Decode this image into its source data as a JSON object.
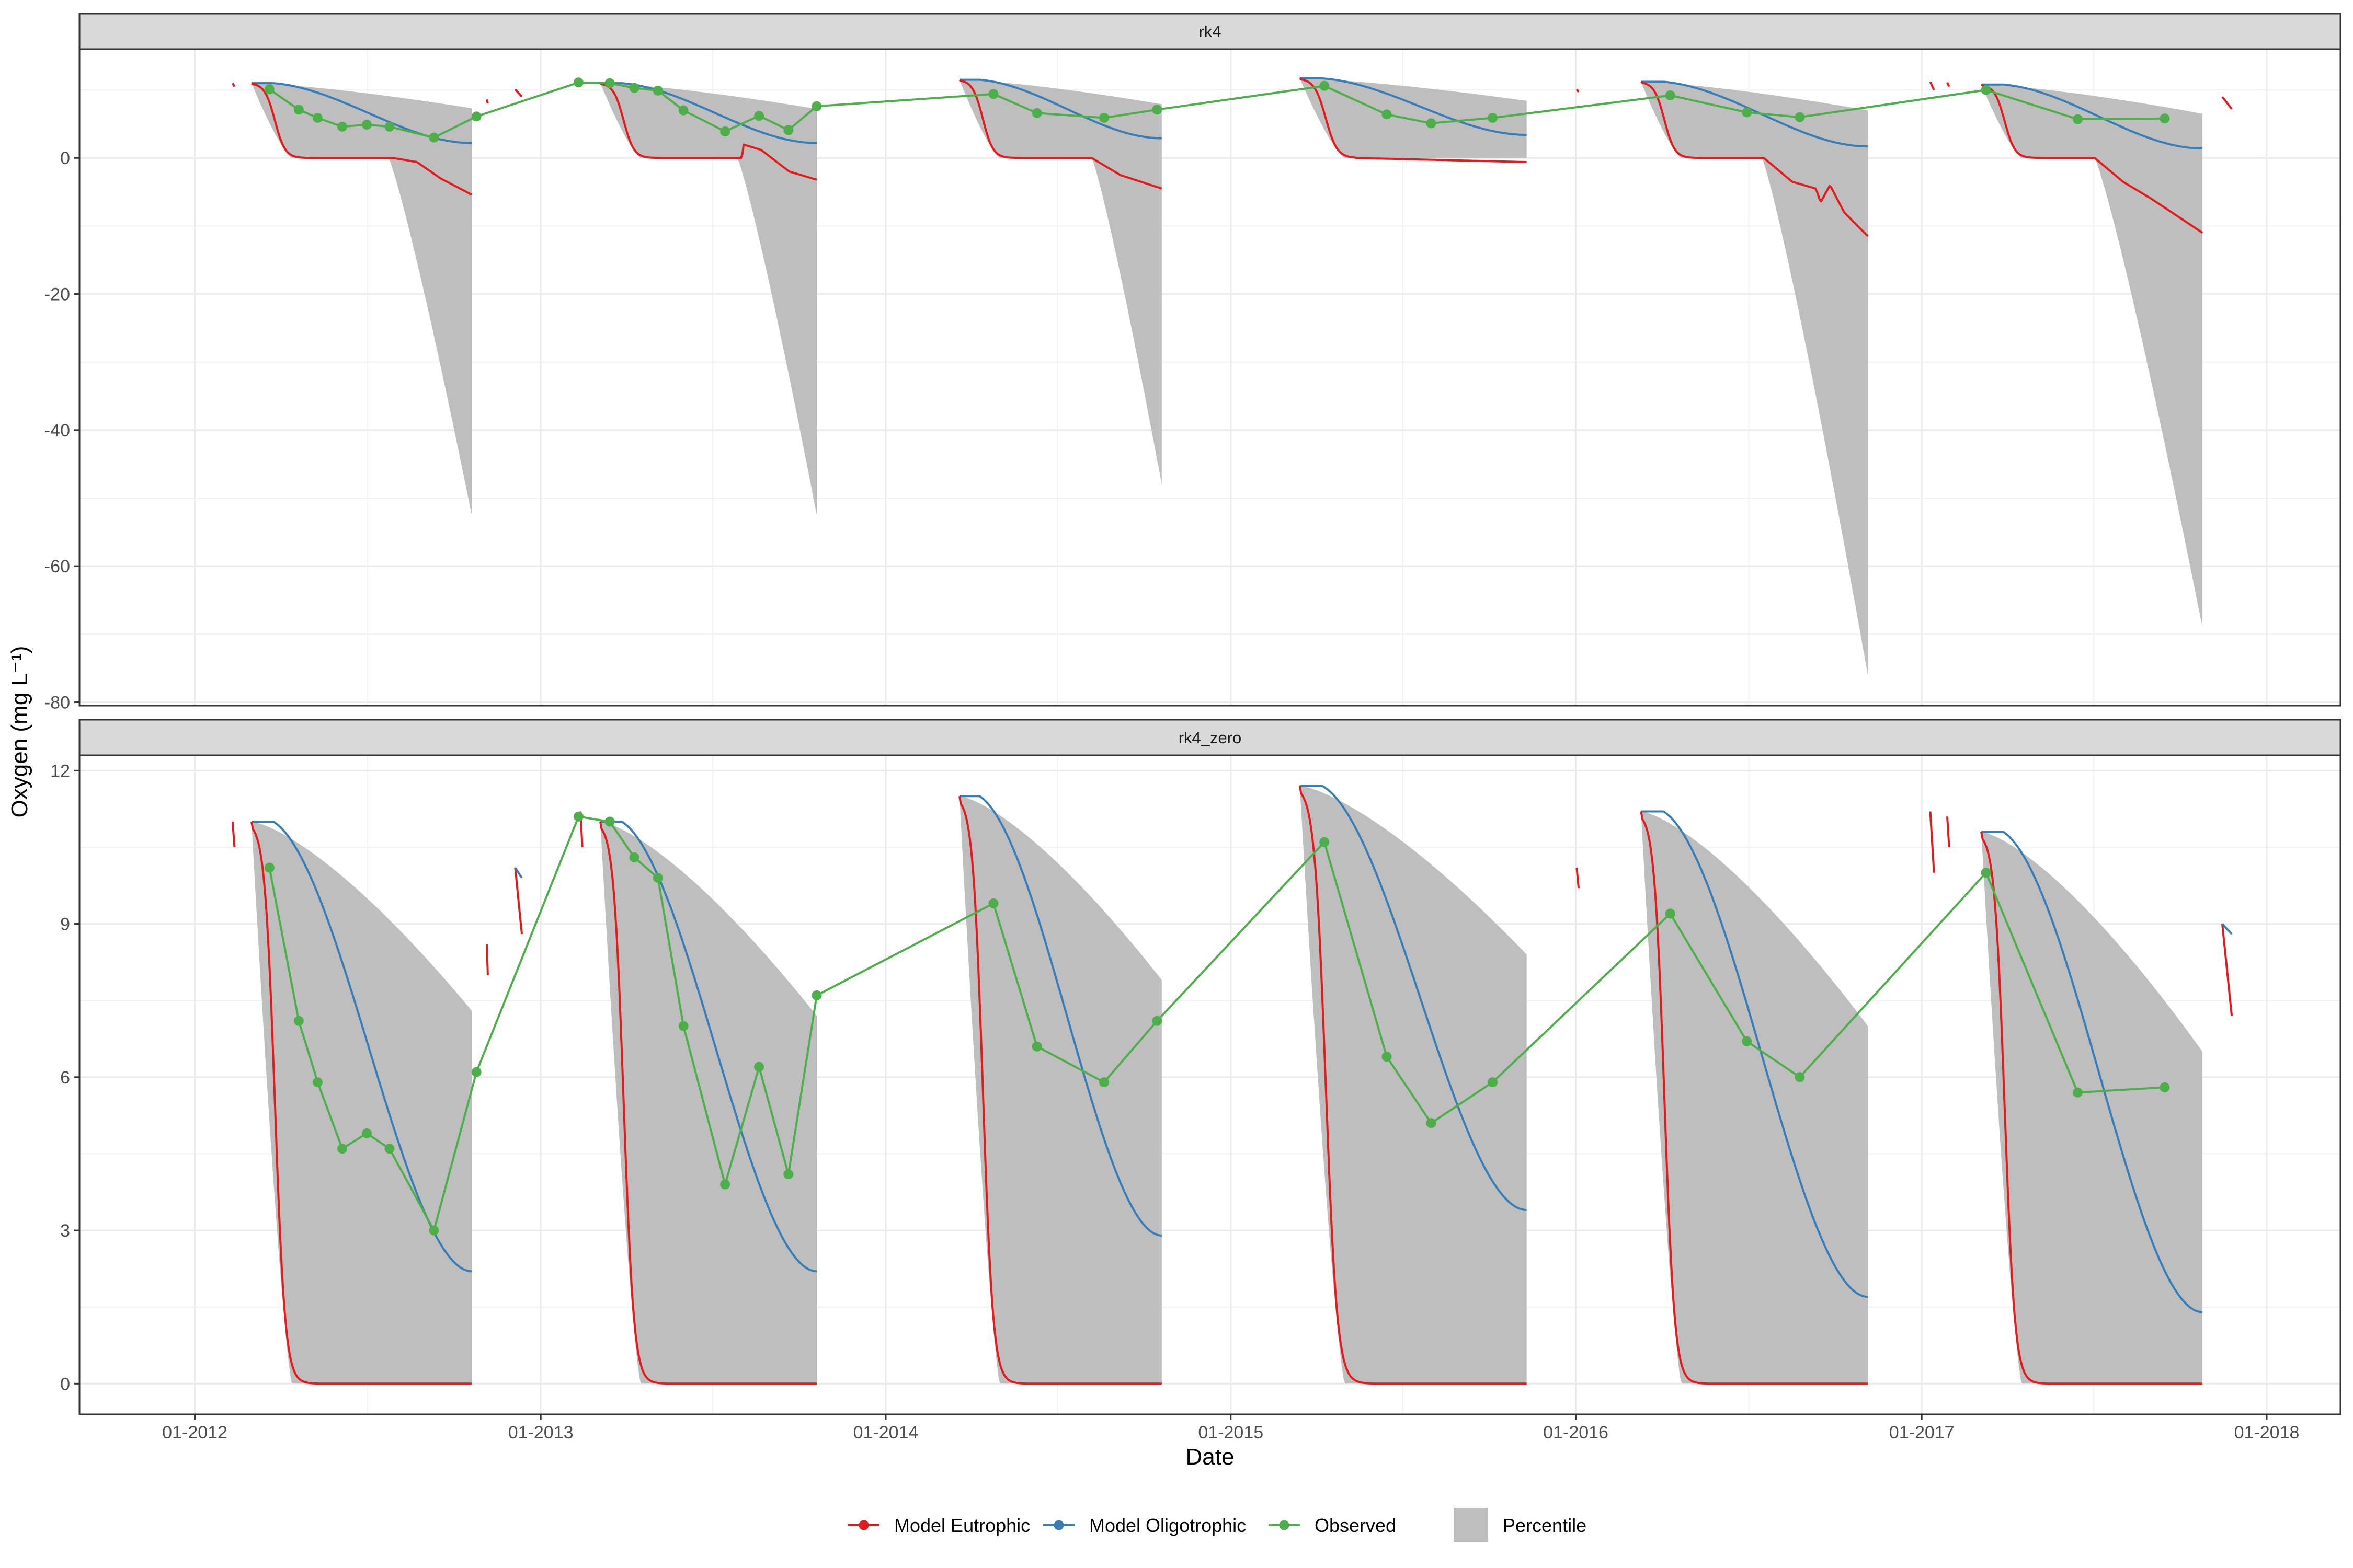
{
  "chart_data": {
    "type": "line",
    "xlabel": "Date",
    "ylabel": "Oxygen (mg L⁻¹)",
    "x_ticks": [
      "01-2012",
      "01-2013",
      "01-2014",
      "01-2015",
      "01-2016",
      "01-2017",
      "01-2018"
    ],
    "x_range": [
      "2011-09-01",
      "2018-03-20"
    ],
    "legend": {
      "position": "bottom",
      "entries": [
        {
          "label": "Model Eutrophic",
          "color": "#e41a1c",
          "kind": "line-point"
        },
        {
          "label": "Model Oligotrophic",
          "color": "#377eb8",
          "kind": "line-point"
        },
        {
          "label": "Observed",
          "color": "#4daf4a",
          "kind": "line-point"
        },
        {
          "label": "Percentile",
          "color": "#bebebe",
          "kind": "fill"
        }
      ]
    },
    "panels": [
      {
        "strip": "rk4",
        "ylim": [
          -80.5,
          16
        ],
        "y_ticks": [
          -80,
          -60,
          -40,
          -20,
          0
        ],
        "observed": [
          [
            "2012-03-20",
            10.1
          ],
          [
            "2012-04-20",
            7.1
          ],
          [
            "2012-05-10",
            5.9
          ],
          [
            "2012-06-05",
            4.6
          ],
          [
            "2012-07-01",
            4.9
          ],
          [
            "2012-07-25",
            4.6
          ],
          [
            "2012-09-10",
            3.0
          ],
          [
            "2012-10-25",
            6.1
          ],
          [
            "2013-02-10",
            11.1
          ],
          [
            "2013-03-15",
            11.0
          ],
          [
            "2013-04-10",
            10.3
          ],
          [
            "2013-05-05",
            9.9
          ],
          [
            "2013-06-01",
            7.0
          ],
          [
            "2013-07-15",
            3.9
          ],
          [
            "2013-08-20",
            6.2
          ],
          [
            "2013-09-20",
            4.1
          ],
          [
            "2013-10-20",
            7.6
          ],
          [
            "2014-04-25",
            9.4
          ],
          [
            "2014-06-10",
            6.6
          ],
          [
            "2014-08-20",
            5.9
          ],
          [
            "2014-10-15",
            7.1
          ],
          [
            "2015-04-10",
            10.6
          ],
          [
            "2015-06-15",
            6.4
          ],
          [
            "2015-08-01",
            5.1
          ],
          [
            "2015-10-05",
            5.9
          ],
          [
            "2016-04-10",
            9.2
          ],
          [
            "2016-06-30",
            6.7
          ],
          [
            "2016-08-25",
            6.0
          ],
          [
            "2017-03-10",
            10.0
          ],
          [
            "2017-06-15",
            5.7
          ],
          [
            "2017-09-15",
            5.8
          ]
        ],
        "seasons": [
          {
            "start": "2012-03-01",
            "end": "2012-10-20",
            "eutrophic_start": 11.0,
            "oligotrophic_start": 11.0,
            "oligotrophic_end": 2.2,
            "eutrophic_drop": 45,
            "eutrophic_tail": [
              [
                150,
                0.0
              ],
              [
                175,
                -0.6
              ],
              [
                200,
                -3.0
              ],
              [
                233,
                -5.4
              ]
            ],
            "band_upper_end": 7.3,
            "band_lower_min": -52.5,
            "band_lower_start": 145
          },
          {
            "start": "2013-03-05",
            "end": "2013-10-20",
            "eutrophic_start": 11.0,
            "oligotrophic_start": 11.0,
            "oligotrophic_end": 2.2,
            "eutrophic_drop": 45,
            "eutrophic_tail": [
              [
                150,
                0.0
              ],
              [
                151,
                2.0
              ],
              [
                170,
                1.2
              ],
              [
                200,
                -2.0
              ],
              [
                229,
                -3.2
              ]
            ],
            "band_upper_end": 7.2,
            "band_lower_min": -52.5,
            "band_lower_start": 145
          },
          {
            "start": "2014-03-20",
            "end": "2014-10-20",
            "eutrophic_start": 11.5,
            "oligotrophic_start": 11.5,
            "oligotrophic_end": 2.9,
            "eutrophic_drop": 45,
            "eutrophic_tail": [
              [
                140,
                0.0
              ],
              [
                170,
                -2.5
              ],
              [
                214,
                -4.5
              ]
            ],
            "band_upper_end": 7.9,
            "band_lower_min": -48.0,
            "band_lower_start": 140
          },
          {
            "start": "2015-03-15",
            "end": "2015-11-10",
            "eutrophic_start": 11.7,
            "oligotrophic_start": 11.7,
            "oligotrophic_end": 3.4,
            "eutrophic_drop": 50,
            "eutrophic_tail": [
              [
                240,
                -0.6
              ]
            ],
            "band_upper_end": 8.4,
            "band_lower_min": 0.0,
            "band_lower_start": 240
          },
          {
            "start": "2016-03-10",
            "end": "2016-11-05",
            "eutrophic_start": 11.2,
            "oligotrophic_start": 11.2,
            "oligotrophic_end": 1.7,
            "eutrophic_drop": 45,
            "eutrophic_tail": [
              [
                130,
                0.0
              ],
              [
                160,
                -3.5
              ],
              [
                185,
                -4.5
              ],
              [
                190,
                -6.5
              ],
              [
                200,
                -4.0
              ],
              [
                215,
                -8.0
              ],
              [
                240,
                -11.5
              ]
            ],
            "band_upper_end": 7.0,
            "band_lower_min": -76.0,
            "band_lower_start": 128
          },
          {
            "start": "2017-03-05",
            "end": "2017-10-25",
            "eutrophic_start": 10.8,
            "oligotrophic_start": 10.8,
            "oligotrophic_end": 1.4,
            "eutrophic_drop": 45,
            "eutrophic_tail": [
              [
                120,
                0.0
              ],
              [
                150,
                -3.5
              ],
              [
                180,
                -6.0
              ],
              [
                234,
                -11.0
              ]
            ],
            "band_upper_end": 6.5,
            "band_lower_min": -69.0,
            "band_lower_start": 120
          }
        ],
        "fragments": [
          {
            "color": "#e41a1c",
            "points": [
              [
                "2012-02-10",
                11.0
              ],
              [
                "2012-02-12",
                10.5
              ]
            ]
          },
          {
            "color": "#e41a1c",
            "points": [
              [
                "2012-11-05",
                8.6
              ],
              [
                "2012-11-06",
                8.0
              ]
            ]
          },
          {
            "color": "#e41a1c",
            "points": [
              [
                "2012-12-05",
                10.1
              ],
              [
                "2012-12-12",
                9.0
              ]
            ]
          },
          {
            "color": "#e41a1c",
            "points": [
              [
                "2016-01-02",
                10.1
              ],
              [
                "2016-01-04",
                9.7
              ]
            ]
          },
          {
            "color": "#e41a1c",
            "points": [
              [
                "2017-01-10",
                11.2
              ],
              [
                "2017-01-14",
                10.0
              ]
            ]
          },
          {
            "color": "#e41a1c",
            "points": [
              [
                "2017-01-28",
                11.1
              ],
              [
                "2017-01-30",
                10.5
              ]
            ]
          },
          {
            "color": "#e41a1c",
            "points": [
              [
                "2017-11-15",
                9.0
              ],
              [
                "2017-11-25",
                7.2
              ]
            ]
          }
        ]
      },
      {
        "strip": "rk4_zero",
        "ylim": [
          -0.6,
          12.3
        ],
        "y_ticks": [
          0,
          3,
          6,
          9,
          12
        ],
        "observed": [
          [
            "2012-03-20",
            10.1
          ],
          [
            "2012-04-20",
            7.1
          ],
          [
            "2012-05-10",
            5.9
          ],
          [
            "2012-06-05",
            4.6
          ],
          [
            "2012-07-01",
            4.9
          ],
          [
            "2012-07-25",
            4.6
          ],
          [
            "2012-09-10",
            3.0
          ],
          [
            "2012-10-25",
            6.1
          ],
          [
            "2013-02-10",
            11.1
          ],
          [
            "2013-03-15",
            11.0
          ],
          [
            "2013-04-10",
            10.3
          ],
          [
            "2013-05-05",
            9.9
          ],
          [
            "2013-06-01",
            7.0
          ],
          [
            "2013-07-15",
            3.9
          ],
          [
            "2013-08-20",
            6.2
          ],
          [
            "2013-09-20",
            4.1
          ],
          [
            "2013-10-20",
            7.6
          ],
          [
            "2014-04-25",
            9.4
          ],
          [
            "2014-06-10",
            6.6
          ],
          [
            "2014-08-20",
            5.9
          ],
          [
            "2014-10-15",
            7.1
          ],
          [
            "2015-04-10",
            10.6
          ],
          [
            "2015-06-15",
            6.4
          ],
          [
            "2015-08-01",
            5.1
          ],
          [
            "2015-10-05",
            5.9
          ],
          [
            "2016-04-10",
            9.2
          ],
          [
            "2016-06-30",
            6.7
          ],
          [
            "2016-08-25",
            6.0
          ],
          [
            "2017-03-10",
            10.0
          ],
          [
            "2017-06-15",
            5.7
          ],
          [
            "2017-09-15",
            5.8
          ]
        ],
        "seasons": [
          {
            "start": "2012-03-01",
            "end": "2012-10-20",
            "eutrophic_start": 11.0,
            "oligotrophic_start": 11.0,
            "oligotrophic_end": 2.2,
            "eutrophic_drop": 45,
            "band_upper_end": 7.3
          },
          {
            "start": "2013-03-05",
            "end": "2013-10-20",
            "eutrophic_start": 11.0,
            "oligotrophic_start": 11.0,
            "oligotrophic_end": 2.2,
            "eutrophic_drop": 45,
            "band_upper_end": 7.2
          },
          {
            "start": "2014-03-20",
            "end": "2014-10-20",
            "eutrophic_start": 11.5,
            "oligotrophic_start": 11.5,
            "oligotrophic_end": 2.9,
            "eutrophic_drop": 45,
            "band_upper_end": 7.9
          },
          {
            "start": "2015-03-15",
            "end": "2015-11-10",
            "eutrophic_start": 11.7,
            "oligotrophic_start": 11.7,
            "oligotrophic_end": 3.4,
            "eutrophic_drop": 50,
            "band_upper_end": 8.4
          },
          {
            "start": "2016-03-10",
            "end": "2016-11-05",
            "eutrophic_start": 11.2,
            "oligotrophic_start": 11.2,
            "oligotrophic_end": 1.7,
            "eutrophic_drop": 45,
            "band_upper_end": 7.0
          },
          {
            "start": "2017-03-05",
            "end": "2017-10-25",
            "eutrophic_start": 10.8,
            "oligotrophic_start": 10.8,
            "oligotrophic_end": 1.4,
            "eutrophic_drop": 45,
            "band_upper_end": 6.5
          }
        ],
        "fragments": [
          {
            "color": "#e41a1c",
            "points": [
              [
                "2012-02-10",
                11.0
              ],
              [
                "2012-02-12",
                10.5
              ]
            ]
          },
          {
            "color": "#e41a1c",
            "points": [
              [
                "2012-11-05",
                8.6
              ],
              [
                "2012-11-06",
                8.0
              ]
            ]
          },
          {
            "color": "#e41a1c",
            "points": [
              [
                "2012-12-05",
                10.1
              ],
              [
                "2012-12-12",
                8.8
              ]
            ]
          },
          {
            "color": "#377eb8",
            "points": [
              [
                "2012-12-05",
                10.1
              ],
              [
                "2012-12-12",
                9.9
              ]
            ]
          },
          {
            "color": "#e41a1c",
            "points": [
              [
                "2013-02-12",
                11.2
              ],
              [
                "2013-02-14",
                10.5
              ]
            ]
          },
          {
            "color": "#e41a1c",
            "points": [
              [
                "2016-01-02",
                10.1
              ],
              [
                "2016-01-04",
                9.7
              ]
            ]
          },
          {
            "color": "#e41a1c",
            "points": [
              [
                "2017-01-10",
                11.2
              ],
              [
                "2017-01-14",
                10.0
              ]
            ]
          },
          {
            "color": "#e41a1c",
            "points": [
              [
                "2017-01-28",
                11.1
              ],
              [
                "2017-01-30",
                10.5
              ]
            ]
          },
          {
            "color": "#e41a1c",
            "points": [
              [
                "2017-11-15",
                9.0
              ],
              [
                "2017-11-25",
                7.2
              ]
            ]
          },
          {
            "color": "#377eb8",
            "points": [
              [
                "2017-11-15",
                9.0
              ],
              [
                "2017-11-25",
                8.8
              ]
            ]
          }
        ]
      }
    ]
  }
}
